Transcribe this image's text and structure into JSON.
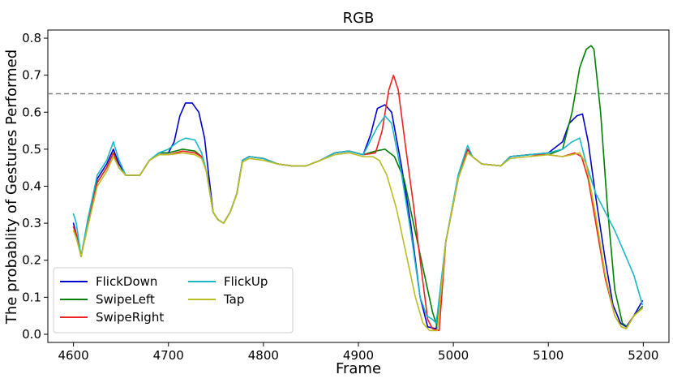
{
  "chart_data": {
    "type": "line",
    "title": "RGB",
    "xlabel": "Frame",
    "ylabel": "The probablity of Gestures Performed",
    "xlim": [
      4573,
      5227
    ],
    "ylim": [
      -0.022,
      0.822
    ],
    "xticks": [
      "4600",
      "4700",
      "4800",
      "4900",
      "5000",
      "5100",
      "5200"
    ],
    "yticks": [
      "0.0",
      "0.1",
      "0.2",
      "0.3",
      "0.4",
      "0.5",
      "0.6",
      "0.7",
      "0.8"
    ],
    "threshold": {
      "value": 0.65,
      "style": "dashed",
      "color": "#808080"
    },
    "legend_position": "lower-left",
    "series": [
      {
        "name": "FlickDown",
        "color": "#0000cc",
        "points": [
          [
            4600,
            0.3
          ],
          [
            4603,
            0.27
          ],
          [
            4608,
            0.21
          ],
          [
            4615,
            0.3
          ],
          [
            4625,
            0.42
          ],
          [
            4635,
            0.46
          ],
          [
            4642,
            0.5
          ],
          [
            4648,
            0.46
          ],
          [
            4655,
            0.43
          ],
          [
            4670,
            0.43
          ],
          [
            4680,
            0.47
          ],
          [
            4690,
            0.49
          ],
          [
            4700,
            0.49
          ],
          [
            4706,
            0.52
          ],
          [
            4712,
            0.59
          ],
          [
            4718,
            0.625
          ],
          [
            4725,
            0.625
          ],
          [
            4732,
            0.6
          ],
          [
            4738,
            0.53
          ],
          [
            4742,
            0.44
          ],
          [
            4747,
            0.33
          ],
          [
            4752,
            0.31
          ],
          [
            4758,
            0.3
          ],
          [
            4765,
            0.33
          ],
          [
            4772,
            0.38
          ],
          [
            4778,
            0.47
          ],
          [
            4785,
            0.48
          ],
          [
            4800,
            0.475
          ],
          [
            4815,
            0.46
          ],
          [
            4830,
            0.455
          ],
          [
            4845,
            0.455
          ],
          [
            4860,
            0.47
          ],
          [
            4875,
            0.49
          ],
          [
            4890,
            0.495
          ],
          [
            4905,
            0.485
          ],
          [
            4913,
            0.54
          ],
          [
            4920,
            0.61
          ],
          [
            4928,
            0.62
          ],
          [
            4935,
            0.6
          ],
          [
            4945,
            0.46
          ],
          [
            4955,
            0.3
          ],
          [
            4965,
            0.1
          ],
          [
            4973,
            0.02
          ],
          [
            4982,
            0.015
          ],
          [
            4992,
            0.25
          ],
          [
            5005,
            0.42
          ],
          [
            5015,
            0.5
          ],
          [
            5020,
            0.48
          ],
          [
            5030,
            0.46
          ],
          [
            5050,
            0.455
          ],
          [
            5060,
            0.48
          ],
          [
            5080,
            0.485
          ],
          [
            5100,
            0.49
          ],
          [
            5115,
            0.52
          ],
          [
            5122,
            0.57
          ],
          [
            5130,
            0.59
          ],
          [
            5136,
            0.595
          ],
          [
            5142,
            0.52
          ],
          [
            5150,
            0.37
          ],
          [
            5160,
            0.2
          ],
          [
            5168,
            0.08
          ],
          [
            5176,
            0.03
          ],
          [
            5182,
            0.02
          ],
          [
            5190,
            0.05
          ],
          [
            5199,
            0.09
          ]
        ]
      },
      {
        "name": "SwipeLeft",
        "color": "#008000",
        "points": [
          [
            4600,
            0.29
          ],
          [
            4603,
            0.27
          ],
          [
            4608,
            0.21
          ],
          [
            4615,
            0.3
          ],
          [
            4625,
            0.41
          ],
          [
            4635,
            0.45
          ],
          [
            4642,
            0.49
          ],
          [
            4648,
            0.45
          ],
          [
            4655,
            0.43
          ],
          [
            4670,
            0.43
          ],
          [
            4680,
            0.47
          ],
          [
            4690,
            0.49
          ],
          [
            4700,
            0.49
          ],
          [
            4715,
            0.5
          ],
          [
            4728,
            0.495
          ],
          [
            4735,
            0.48
          ],
          [
            4740,
            0.44
          ],
          [
            4747,
            0.33
          ],
          [
            4752,
            0.31
          ],
          [
            4758,
            0.3
          ],
          [
            4765,
            0.33
          ],
          [
            4772,
            0.38
          ],
          [
            4778,
            0.47
          ],
          [
            4785,
            0.48
          ],
          [
            4800,
            0.475
          ],
          [
            4815,
            0.46
          ],
          [
            4830,
            0.455
          ],
          [
            4845,
            0.455
          ],
          [
            4860,
            0.47
          ],
          [
            4875,
            0.49
          ],
          [
            4890,
            0.495
          ],
          [
            4905,
            0.485
          ],
          [
            4918,
            0.495
          ],
          [
            4928,
            0.5
          ],
          [
            4938,
            0.48
          ],
          [
            4948,
            0.42
          ],
          [
            4958,
            0.3
          ],
          [
            4968,
            0.18
          ],
          [
            4978,
            0.06
          ],
          [
            4983,
            0.02
          ],
          [
            4992,
            0.25
          ],
          [
            5005,
            0.42
          ],
          [
            5015,
            0.5
          ],
          [
            5020,
            0.48
          ],
          [
            5030,
            0.46
          ],
          [
            5050,
            0.455
          ],
          [
            5060,
            0.48
          ],
          [
            5080,
            0.485
          ],
          [
            5100,
            0.485
          ],
          [
            5115,
            0.5
          ],
          [
            5125,
            0.6
          ],
          [
            5133,
            0.72
          ],
          [
            5140,
            0.77
          ],
          [
            5145,
            0.78
          ],
          [
            5148,
            0.77
          ],
          [
            5155,
            0.6
          ],
          [
            5162,
            0.35
          ],
          [
            5170,
            0.12
          ],
          [
            5178,
            0.03
          ],
          [
            5183,
            0.02
          ],
          [
            5190,
            0.05
          ],
          [
            5199,
            0.075
          ]
        ]
      },
      {
        "name": "SwipeRight",
        "color": "#ee2222",
        "points": [
          [
            4600,
            0.29
          ],
          [
            4603,
            0.27
          ],
          [
            4608,
            0.21
          ],
          [
            4615,
            0.3
          ],
          [
            4625,
            0.41
          ],
          [
            4635,
            0.45
          ],
          [
            4642,
            0.49
          ],
          [
            4648,
            0.45
          ],
          [
            4655,
            0.43
          ],
          [
            4670,
            0.43
          ],
          [
            4680,
            0.47
          ],
          [
            4690,
            0.485
          ],
          [
            4700,
            0.485
          ],
          [
            4715,
            0.495
          ],
          [
            4728,
            0.49
          ],
          [
            4735,
            0.48
          ],
          [
            4740,
            0.44
          ],
          [
            4747,
            0.33
          ],
          [
            4752,
            0.31
          ],
          [
            4758,
            0.3
          ],
          [
            4765,
            0.33
          ],
          [
            4772,
            0.38
          ],
          [
            4778,
            0.47
          ],
          [
            4785,
            0.48
          ],
          [
            4800,
            0.475
          ],
          [
            4815,
            0.46
          ],
          [
            4830,
            0.455
          ],
          [
            4845,
            0.455
          ],
          [
            4860,
            0.47
          ],
          [
            4875,
            0.49
          ],
          [
            4890,
            0.495
          ],
          [
            4905,
            0.485
          ],
          [
            4918,
            0.49
          ],
          [
            4925,
            0.55
          ],
          [
            4932,
            0.66
          ],
          [
            4937,
            0.7
          ],
          [
            4942,
            0.66
          ],
          [
            4950,
            0.5
          ],
          [
            4958,
            0.35
          ],
          [
            4966,
            0.18
          ],
          [
            4973,
            0.04
          ],
          [
            4978,
            0.015
          ],
          [
            4985,
            0.01
          ],
          [
            4992,
            0.25
          ],
          [
            5005,
            0.42
          ],
          [
            5015,
            0.5
          ],
          [
            5020,
            0.48
          ],
          [
            5030,
            0.46
          ],
          [
            5050,
            0.455
          ],
          [
            5060,
            0.48
          ],
          [
            5080,
            0.485
          ],
          [
            5100,
            0.485
          ],
          [
            5115,
            0.48
          ],
          [
            5128,
            0.49
          ],
          [
            5135,
            0.48
          ],
          [
            5142,
            0.42
          ],
          [
            5150,
            0.3
          ],
          [
            5160,
            0.15
          ],
          [
            5170,
            0.05
          ],
          [
            5177,
            0.02
          ],
          [
            5182,
            0.015
          ],
          [
            5190,
            0.05
          ],
          [
            5199,
            0.07
          ]
        ]
      },
      {
        "name": "FlickUp",
        "color": "#1ab8c8",
        "points": [
          [
            4600,
            0.325
          ],
          [
            4603,
            0.3
          ],
          [
            4608,
            0.21
          ],
          [
            4615,
            0.31
          ],
          [
            4625,
            0.43
          ],
          [
            4635,
            0.47
          ],
          [
            4642,
            0.52
          ],
          [
            4648,
            0.47
          ],
          [
            4655,
            0.43
          ],
          [
            4670,
            0.43
          ],
          [
            4680,
            0.47
          ],
          [
            4690,
            0.49
          ],
          [
            4700,
            0.5
          ],
          [
            4710,
            0.52
          ],
          [
            4718,
            0.53
          ],
          [
            4728,
            0.525
          ],
          [
            4735,
            0.49
          ],
          [
            4740,
            0.44
          ],
          [
            4747,
            0.33
          ],
          [
            4752,
            0.31
          ],
          [
            4758,
            0.3
          ],
          [
            4765,
            0.33
          ],
          [
            4772,
            0.38
          ],
          [
            4778,
            0.47
          ],
          [
            4785,
            0.48
          ],
          [
            4800,
            0.475
          ],
          [
            4815,
            0.46
          ],
          [
            4830,
            0.455
          ],
          [
            4845,
            0.455
          ],
          [
            4860,
            0.47
          ],
          [
            4875,
            0.49
          ],
          [
            4890,
            0.495
          ],
          [
            4905,
            0.485
          ],
          [
            4912,
            0.52
          ],
          [
            4920,
            0.56
          ],
          [
            4928,
            0.59
          ],
          [
            4935,
            0.57
          ],
          [
            4945,
            0.44
          ],
          [
            4955,
            0.28
          ],
          [
            4965,
            0.1
          ],
          [
            4972,
            0.05
          ],
          [
            4978,
            0.04
          ],
          [
            4982,
            0.03
          ],
          [
            4992,
            0.25
          ],
          [
            5005,
            0.43
          ],
          [
            5015,
            0.51
          ],
          [
            5020,
            0.48
          ],
          [
            5030,
            0.46
          ],
          [
            5050,
            0.455
          ],
          [
            5060,
            0.48
          ],
          [
            5080,
            0.485
          ],
          [
            5100,
            0.49
          ],
          [
            5115,
            0.5
          ],
          [
            5125,
            0.52
          ],
          [
            5133,
            0.53
          ],
          [
            5140,
            0.46
          ],
          [
            5150,
            0.38
          ],
          [
            5160,
            0.33
          ],
          [
            5170,
            0.28
          ],
          [
            5180,
            0.22
          ],
          [
            5190,
            0.16
          ],
          [
            5199,
            0.08
          ]
        ]
      },
      {
        "name": "Tap",
        "color": "#bcbd22",
        "points": [
          [
            4600,
            0.28
          ],
          [
            4603,
            0.26
          ],
          [
            4608,
            0.21
          ],
          [
            4615,
            0.29
          ],
          [
            4625,
            0.4
          ],
          [
            4635,
            0.44
          ],
          [
            4642,
            0.48
          ],
          [
            4648,
            0.45
          ],
          [
            4655,
            0.43
          ],
          [
            4670,
            0.43
          ],
          [
            4680,
            0.47
          ],
          [
            4690,
            0.485
          ],
          [
            4700,
            0.485
          ],
          [
            4715,
            0.49
          ],
          [
            4728,
            0.485
          ],
          [
            4735,
            0.475
          ],
          [
            4740,
            0.44
          ],
          [
            4747,
            0.33
          ],
          [
            4752,
            0.31
          ],
          [
            4758,
            0.3
          ],
          [
            4765,
            0.33
          ],
          [
            4772,
            0.38
          ],
          [
            4778,
            0.465
          ],
          [
            4785,
            0.475
          ],
          [
            4800,
            0.47
          ],
          [
            4815,
            0.46
          ],
          [
            4830,
            0.455
          ],
          [
            4845,
            0.455
          ],
          [
            4860,
            0.47
          ],
          [
            4875,
            0.485
          ],
          [
            4890,
            0.49
          ],
          [
            4905,
            0.48
          ],
          [
            4915,
            0.48
          ],
          [
            4922,
            0.47
          ],
          [
            4930,
            0.43
          ],
          [
            4940,
            0.34
          ],
          [
            4950,
            0.22
          ],
          [
            4960,
            0.1
          ],
          [
            4968,
            0.03
          ],
          [
            4975,
            0.01
          ],
          [
            4983,
            0.01
          ],
          [
            4992,
            0.25
          ],
          [
            5005,
            0.42
          ],
          [
            5015,
            0.49
          ],
          [
            5020,
            0.48
          ],
          [
            5030,
            0.46
          ],
          [
            5050,
            0.455
          ],
          [
            5060,
            0.475
          ],
          [
            5080,
            0.48
          ],
          [
            5100,
            0.485
          ],
          [
            5115,
            0.48
          ],
          [
            5125,
            0.485
          ],
          [
            5133,
            0.49
          ],
          [
            5140,
            0.46
          ],
          [
            5150,
            0.32
          ],
          [
            5160,
            0.16
          ],
          [
            5170,
            0.05
          ],
          [
            5177,
            0.02
          ],
          [
            5182,
            0.015
          ],
          [
            5190,
            0.05
          ],
          [
            5199,
            0.07
          ]
        ]
      }
    ]
  }
}
